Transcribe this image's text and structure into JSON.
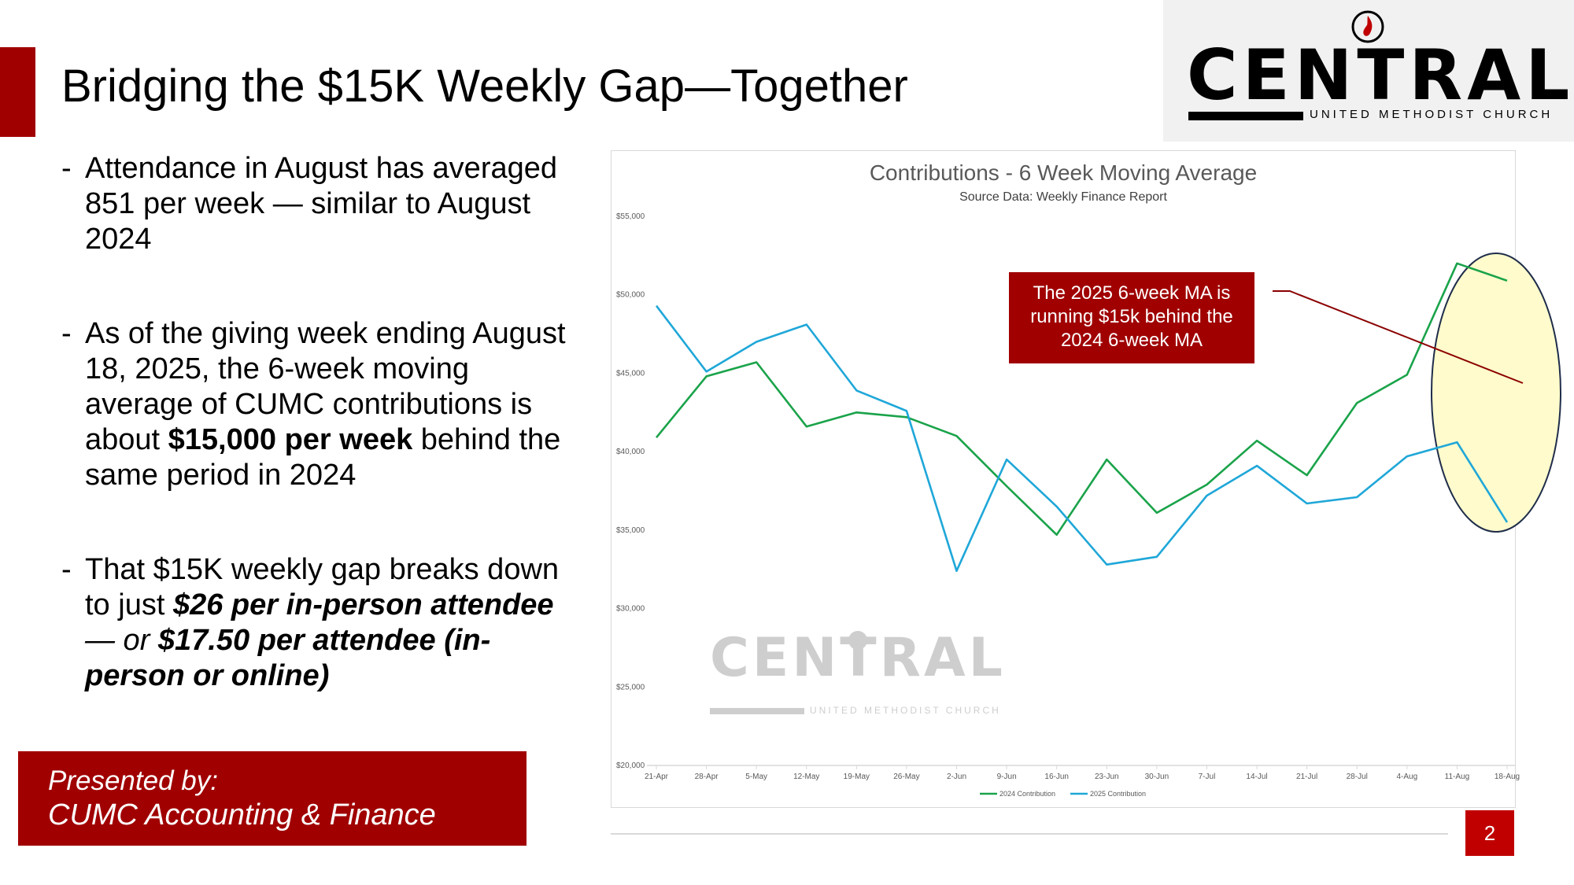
{
  "slide": {
    "title": "Bridging the $15K Weekly Gap—Together",
    "page_number": "2",
    "accent_color": "#a00000"
  },
  "logo": {
    "name": "CENTRAL",
    "subtitle": "UNITED METHODIST CHURCH",
    "icon": "flame-icon"
  },
  "bullets": {
    "b1": "Attendance in August has averaged 851 per week — similar to August 2024",
    "b2_pre": "As of the giving week ending August 18, 2025, the 6-week moving average of CUMC contributions is about ",
    "b2_bold": "$15,000 per week",
    "b2_post": " behind the same period in 2024",
    "b3_pre": "That $15K weekly gap breaks down to just ",
    "b3_bi1": "$26 per in-person attendee",
    "b3_mid": " — or ",
    "b3_bi2": "$17.50 per attendee (in-person or online)"
  },
  "presented": {
    "line1": "Presented by:",
    "line2": "CUMC Accounting & Finance"
  },
  "chart_data": {
    "type": "line",
    "title": "Contributions - 6 Week Moving Average",
    "subtitle": "Source Data: Weekly Finance Report",
    "xlabel": "",
    "ylabel": "",
    "categories": [
      "21-Apr",
      "28-Apr",
      "5-May",
      "12-May",
      "19-May",
      "26-May",
      "2-Jun",
      "9-Jun",
      "16-Jun",
      "23-Jun",
      "30-Jun",
      "7-Jul",
      "14-Jul",
      "21-Jul",
      "28-Jul",
      "4-Aug",
      "11-Aug",
      "18-Aug"
    ],
    "y_ticks": [
      "$20,000",
      "$25,000",
      "$30,000",
      "$35,000",
      "$40,000",
      "$45,000",
      "$50,000",
      "$55,000"
    ],
    "ylim": [
      20000,
      55000
    ],
    "grid": false,
    "legend_position": "bottom",
    "series": [
      {
        "name": "2024 Contribution",
        "color": "#1aa34a",
        "values": [
          40900,
          44800,
          45700,
          41600,
          42500,
          42200,
          41000,
          37800,
          34700,
          39500,
          36100,
          37900,
          40700,
          38500,
          43100,
          44900,
          52000,
          50900
        ]
      },
      {
        "name": "2025 Contribution",
        "color": "#1fa7d8",
        "values": [
          49300,
          45100,
          47000,
          48100,
          43900,
          42600,
          32400,
          39500,
          36500,
          32800,
          33300,
          37200,
          39100,
          36700,
          37100,
          39700,
          40600,
          35500
        ]
      }
    ],
    "annotation": {
      "text": "The 2025 6-week MA is running $15k behind the 2024 6-week MA",
      "box_color": "#a00000",
      "highlight_color": "#fffbcc"
    },
    "watermark": {
      "name": "CENTRAL",
      "subtitle": "UNITED METHODIST CHURCH"
    }
  }
}
